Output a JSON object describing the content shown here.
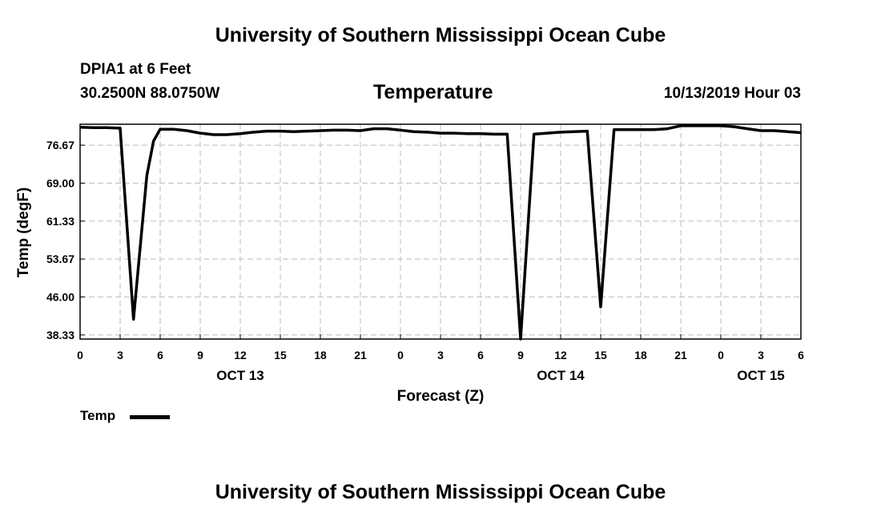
{
  "header": {
    "title_top": "University of Southern Mississippi Ocean Cube",
    "station": "DPIA1 at 6 Feet",
    "coords": "30.2500N 88.0750W",
    "plot_title": "Temperature",
    "datetime": "10/13/2019 Hour 03"
  },
  "footer": {
    "title_bottom": "University of Southern Mississippi Ocean Cube"
  },
  "legend": {
    "label": "Temp"
  },
  "chart_data": {
    "type": "line",
    "title": "Temperature",
    "xlabel": "Forecast (Z)",
    "ylabel": "Temp (degF)",
    "grid": true,
    "xlim": [
      0,
      54
    ],
    "ylim": [
      37.5,
      80.9
    ],
    "yticks": [
      "38.33",
      "46.00",
      "53.67",
      "61.33",
      "69.00",
      "76.67"
    ],
    "ytick_values": [
      38.33,
      46.0,
      53.67,
      61.33,
      69.0,
      76.67
    ],
    "xtick_labels": [
      "0",
      "3",
      "6",
      "9",
      "12",
      "15",
      "18",
      "21",
      "0",
      "3",
      "6",
      "9",
      "12",
      "15",
      "18",
      "21",
      "0",
      "3",
      "6"
    ],
    "day_labels": [
      {
        "label": "OCT 13",
        "x": 12
      },
      {
        "label": "OCT 14",
        "x": 36
      },
      {
        "label": "OCT 15",
        "x": 51
      }
    ],
    "series": [
      {
        "name": "Temp",
        "color": "#000000",
        "x": [
          0,
          1,
          2,
          3,
          4,
          5,
          5.5,
          6,
          7,
          8,
          9,
          10,
          11,
          12,
          13,
          14,
          15,
          16,
          17,
          18,
          19,
          20,
          21,
          22,
          23,
          24,
          25,
          26,
          27,
          28,
          29,
          30,
          31,
          32,
          33,
          34,
          35,
          36,
          37,
          38,
          39,
          40,
          41,
          42,
          43,
          44,
          45,
          46,
          47,
          48,
          49,
          50,
          51,
          52,
          53,
          54
        ],
        "values": [
          80.3,
          80.2,
          80.2,
          80.1,
          41.5,
          70.5,
          77.5,
          79.9,
          79.9,
          79.6,
          79.1,
          78.8,
          78.8,
          79.0,
          79.3,
          79.5,
          79.5,
          79.4,
          79.5,
          79.6,
          79.7,
          79.7,
          79.6,
          80.0,
          80.0,
          79.7,
          79.4,
          79.3,
          79.1,
          79.1,
          79.0,
          79.0,
          78.9,
          78.9,
          37.5,
          78.9,
          79.1,
          79.3,
          79.4,
          79.5,
          44.0,
          79.8,
          79.8,
          79.8,
          79.8,
          80.0,
          80.6,
          80.6,
          80.6,
          80.6,
          80.4,
          80.0,
          79.6,
          79.6,
          79.4,
          79.2
        ]
      }
    ]
  }
}
